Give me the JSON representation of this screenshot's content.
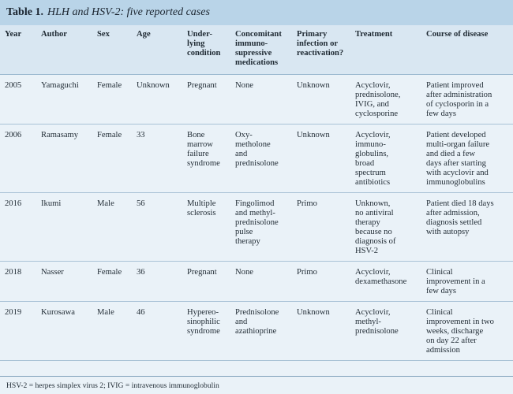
{
  "title": {
    "label": "Table 1.",
    "text": "HLH and HSV-2: five reported cases"
  },
  "columns": [
    "Year",
    "Author",
    "Sex",
    "Age",
    "Under-\nlying\ncondition",
    "Concomitant\nimmuno-\nsupressive\nmedications",
    "Primary\ninfection or\nreactivation?",
    "Treatment",
    "Course of disease"
  ],
  "rows": [
    {
      "year": "2005",
      "author": "Yamaguchi",
      "sex": "Female",
      "age": "Unknown",
      "condition": "Pregnant",
      "meds": "None",
      "infection": "Unknown",
      "treatment": "Acyclovir,\nprednisolone,\nIVIG, and\ncyclosporine",
      "course": "Patient improved\nafter administration\nof cyclosporin in a\nfew days"
    },
    {
      "year": "2006",
      "author": "Ramasamy",
      "sex": "Female",
      "age": "33",
      "condition": "Bone\nmarrow\nfailure\nsyndrome",
      "meds": "Oxy-\nmetholone\nand\nprednisolone",
      "infection": "Unknown",
      "treatment": "Acyclovir,\nimmuno-\nglobulins,\nbroad\nspectrum\nantibiotics",
      "course": "Patient developed\nmulti-organ failure\nand died a few\ndays after starting\nwith acyclovir and\nimmunoglobulins"
    },
    {
      "year": "2016",
      "author": "Ikumi",
      "sex": "Male",
      "age": "56",
      "condition": "Multiple\nsclerosis",
      "meds": "Fingolimod\nand methyl-\nprednisolone\npulse\ntherapy",
      "infection": "Primo",
      "treatment": "Unknown,\nno antiviral\ntherapy\nbecause no\ndiagnosis of\nHSV-2",
      "course": "Patient died 18 days\nafter admission,\ndiagnosis settled\nwith autopsy"
    },
    {
      "year": "2018",
      "author": "Nasser",
      "sex": "Female",
      "age": "36",
      "condition": "Pregnant",
      "meds": "None",
      "infection": "Primo",
      "treatment": "Acyclovir,\ndexamethasone",
      "course": "Clinical\nimprovement in a\nfew days"
    },
    {
      "year": "2019",
      "author": "Kurosawa",
      "sex": "Male",
      "age": "46",
      "condition": "Hypereo-\nsinophilic\nsyndrome",
      "meds": "Prednisolone\nand\nazathioprine",
      "infection": "Unknown",
      "treatment": "Acyclovir,\nmethyl-\nprednisolone",
      "course": "Clinical\nimprovement in two\nweeks, discharge\non day 22 after\nadmission"
    }
  ],
  "footnote": "HSV-2 = herpes simplex virus 2; IVIG = intravenous immunoglobulin"
}
